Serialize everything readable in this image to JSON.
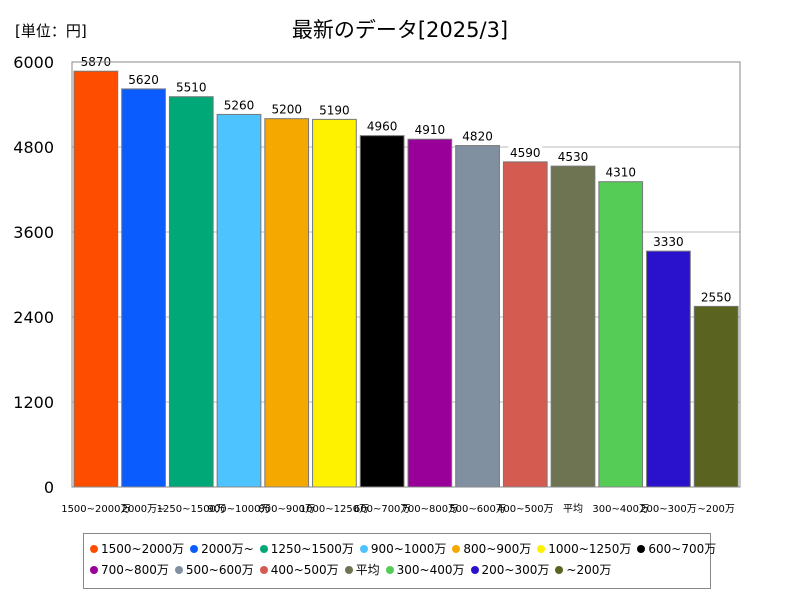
{
  "unit_label": "[単位：円]",
  "chart_data": {
    "type": "bar",
    "title": "最新のデータ[2025/3]",
    "categories": [
      "1500~2000万",
      "2000万~",
      "1250~1500万",
      "900~1000万",
      "800~900万",
      "1000~1250万",
      "600~700万",
      "700~800万",
      "500~600万",
      "400~500万",
      "平均",
      "300~400万",
      "200~300万",
      "~200万"
    ],
    "values": [
      5870,
      5620,
      5510,
      5260,
      5200,
      5190,
      4960,
      4910,
      4820,
      4590,
      4530,
      4310,
      3330,
      2550
    ],
    "colors": [
      "#ff4d00",
      "#0b5cff",
      "#00a878",
      "#4dc3ff",
      "#f5a800",
      "#fff200",
      "#000000",
      "#990099",
      "#8090a0",
      "#d45b50",
      "#6e7352",
      "#55cc55",
      "#2a12cc",
      "#5a6320"
    ],
    "ylim": [
      0,
      6000
    ],
    "yticks": [
      0,
      1200,
      2400,
      3600,
      4800,
      6000
    ],
    "xlabel": "",
    "ylabel": "",
    "grid": true,
    "legend_position": "bottom",
    "legend_rows": [
      [
        0,
        1,
        2,
        3,
        4,
        5,
        6
      ],
      [
        7,
        8,
        9,
        10,
        11,
        12,
        13
      ]
    ]
  }
}
